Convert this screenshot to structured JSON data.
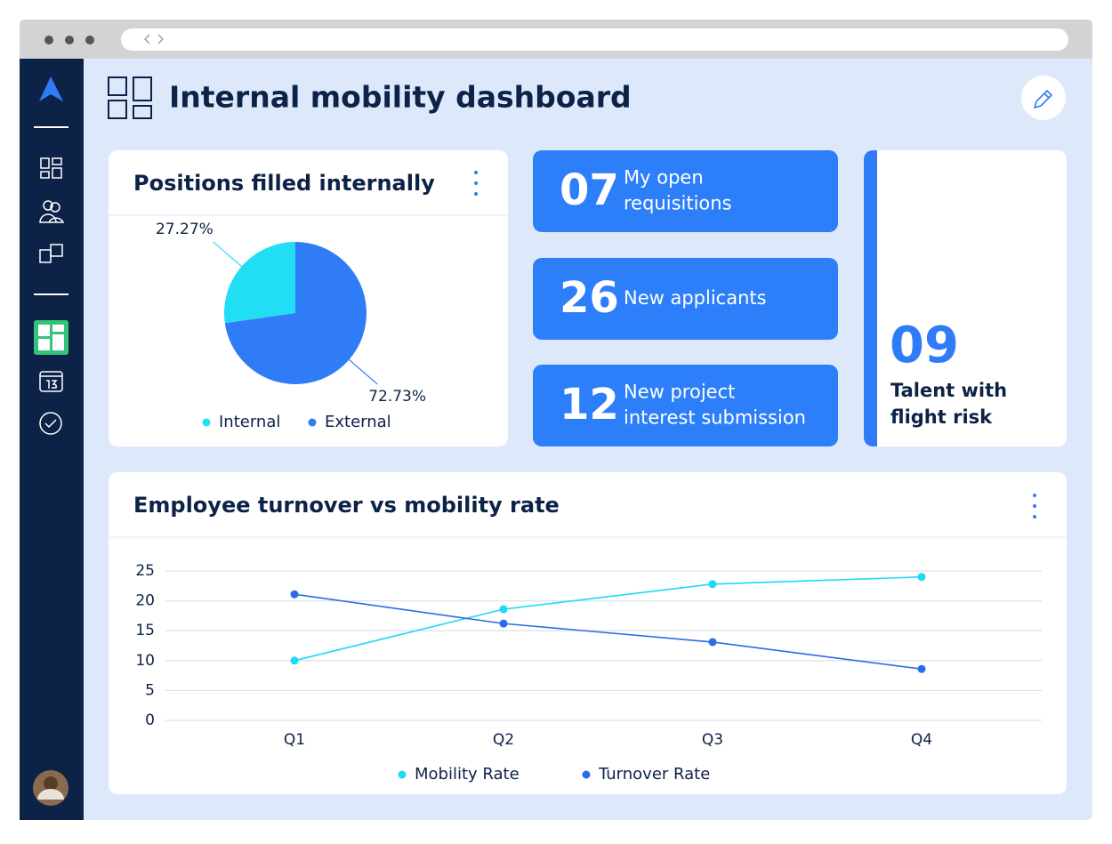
{
  "header": {
    "title": "Internal mobility dashboard"
  },
  "chart_data": [
    {
      "type": "pie",
      "title": "Positions filled internally",
      "categories": [
        "Internal",
        "External"
      ],
      "values": [
        27.27,
        72.73
      ],
      "value_labels": [
        "27.27%",
        "72.73%"
      ],
      "colors": [
        "#22def5",
        "#2f7cf6"
      ]
    },
    {
      "type": "line",
      "title": "Employee turnover vs mobility rate",
      "categories": [
        "Q1",
        "Q2",
        "Q3",
        "Q4"
      ],
      "series": [
        {
          "name": "Mobility Rate",
          "color": "#1fd8f5",
          "values": [
            10,
            18.6,
            22.8,
            24
          ]
        },
        {
          "name": "Turnover Rate",
          "color": "#2c6be8",
          "values": [
            21.1,
            16.2,
            13.1,
            8.6
          ]
        }
      ],
      "ylim": [
        0,
        25
      ],
      "yticks": [
        0,
        5,
        10,
        15,
        20,
        25
      ],
      "grid": true
    }
  ],
  "kpis": [
    {
      "value": "07",
      "label": [
        "My open",
        "requisitions"
      ]
    },
    {
      "value": "26",
      "label": [
        "New applicants"
      ]
    },
    {
      "value": "12",
      "label": [
        "New project",
        "interest submission"
      ]
    }
  ],
  "highlight": {
    "value": "09",
    "label": [
      "Talent with",
      "flight risk"
    ]
  }
}
